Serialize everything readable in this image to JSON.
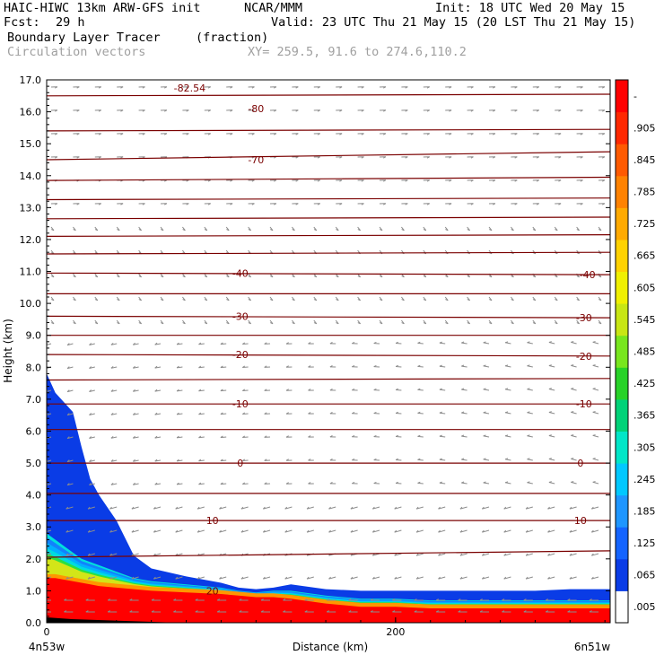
{
  "header": {
    "model": "HAIC-HIWC 13km ARW-GFS init",
    "org": "NCAR/MMM",
    "init": "Init: 18 UTC Wed 20 May 15",
    "fcst_label": "Fcst:",
    "fcst_value": "29 h",
    "valid": "Valid: 23 UTC Thu 21 May 15 (20 LST Thu 21 May 15)",
    "field": "Boundary Layer Tracer",
    "field_units": "(fraction)",
    "overlay": "Circulation vectors",
    "xy": "XY= 259.5, 91.6 to 274.6,110.2"
  },
  "colors": {
    "contour": "#7a0000",
    "vector": "#8c8c8c",
    "fill_palette": [
      "#ffffff",
      "#0a3ce6",
      "#1478ff",
      "#00b4ff",
      "#00e0dc",
      "#00d080",
      "#30e030",
      "#a0e628",
      "#e6e614",
      "#ffc800",
      "#ff9600",
      "#ff6400",
      "#ff3c00",
      "#ff0000"
    ]
  },
  "chart_data": {
    "type": "heatmap",
    "title": "Boundary Layer Tracer",
    "units": "(fraction)",
    "xlabel": "Distance (km)",
    "ylabel": "Height (km)",
    "xlim": [
      0,
      323
    ],
    "ylim": [
      0,
      17
    ],
    "x_ticks": [
      "0",
      "200"
    ],
    "x_endpoints": [
      "4n53w",
      "6n51w"
    ],
    "y_ticks": [
      "0.0",
      "1.0",
      "2.0",
      "3.0",
      "4.0",
      "5.0",
      "6.0",
      "7.0",
      "8.0",
      "9.0",
      "10.0",
      "11.0",
      "12.0",
      "13.0",
      "14.0",
      "15.0",
      "16.0",
      "17.0"
    ],
    "colorbar_labels": [
      ".005",
      ".065",
      ".125",
      ".185",
      ".245",
      ".305",
      ".365",
      ".425",
      ".485",
      ".545",
      ".605",
      ".665",
      ".725",
      ".785",
      ".845",
      ".905",
      "-"
    ],
    "contour_labels": [
      {
        "text": "-82.54",
        "x": 82,
        "y": 16.75
      },
      {
        "text": "-80",
        "x": 120,
        "y": 16.1
      },
      {
        "text": "-70",
        "x": 120,
        "y": 14.5
      },
      {
        "text": "-40",
        "x": 111,
        "y": 10.95
      },
      {
        "text": "-40",
        "x": 310,
        "y": 10.9
      },
      {
        "text": "-30",
        "x": 111,
        "y": 9.6
      },
      {
        "text": "-30",
        "x": 308,
        "y": 9.55
      },
      {
        "text": "-20",
        "x": 111,
        "y": 8.4
      },
      {
        "text": "-20",
        "x": 308,
        "y": 8.35
      },
      {
        "text": "-10",
        "x": 111,
        "y": 6.85
      },
      {
        "text": "-10",
        "x": 308,
        "y": 6.85
      },
      {
        "text": "0",
        "x": 111,
        "y": 5.0
      },
      {
        "text": "0",
        "x": 306,
        "y": 5.0
      },
      {
        "text": "10",
        "x": 95,
        "y": 3.2
      },
      {
        "text": "10",
        "x": 306,
        "y": 3.2
      },
      {
        "text": "20",
        "x": 95,
        "y": 1.0
      }
    ],
    "isotherm_heights": [
      [
        16.5,
        16.55
      ],
      [
        15.4,
        15.45
      ],
      [
        14.5,
        14.75
      ],
      [
        13.85,
        13.95
      ],
      [
        13.25,
        13.3
      ],
      [
        12.65,
        12.7
      ],
      [
        12.1,
        12.15
      ],
      [
        11.55,
        11.6
      ],
      [
        10.95,
        10.9
      ],
      [
        10.3,
        10.3
      ],
      [
        9.6,
        9.55
      ],
      [
        9.0,
        9.0
      ],
      [
        8.4,
        8.35
      ],
      [
        7.6,
        7.65
      ],
      [
        6.85,
        6.85
      ],
      [
        6.05,
        6.05
      ],
      [
        5.0,
        5.0
      ],
      [
        4.05,
        4.05
      ],
      [
        3.2,
        3.2
      ],
      [
        2.05,
        2.25
      ]
    ],
    "tracer_top_km": {
      "x": [
        0,
        5,
        10,
        15,
        20,
        25,
        30,
        40,
        50,
        60,
        80,
        100,
        110,
        120,
        130,
        140,
        160,
        180,
        200,
        220,
        250,
        280,
        300,
        323
      ],
      "level_0.005": [
        7.8,
        7.2,
        6.9,
        6.6,
        5.5,
        4.5,
        4.0,
        3.2,
        2.1,
        1.7,
        1.45,
        1.25,
        1.1,
        1.05,
        1.1,
        1.2,
        1.05,
        1.0,
        1.0,
        1.0,
        1.0,
        1.0,
        1.05,
        1.05
      ],
      "level_0.245": [
        2.8,
        2.6,
        2.4,
        2.2,
        2.0,
        1.9,
        1.8,
        1.6,
        1.4,
        1.3,
        1.2,
        1.1,
        1.0,
        0.95,
        1.0,
        1.0,
        0.85,
        0.75,
        0.75,
        0.7,
        0.7,
        0.7,
        0.7,
        0.7
      ],
      "level_0.845": [
        1.4,
        1.4,
        1.35,
        1.3,
        1.25,
        1.2,
        1.15,
        1.1,
        1.05,
        1.0,
        0.95,
        0.9,
        0.85,
        0.8,
        0.8,
        0.75,
        0.6,
        0.5,
        0.5,
        0.45,
        0.45,
        0.45,
        0.45,
        0.45
      ]
    }
  }
}
